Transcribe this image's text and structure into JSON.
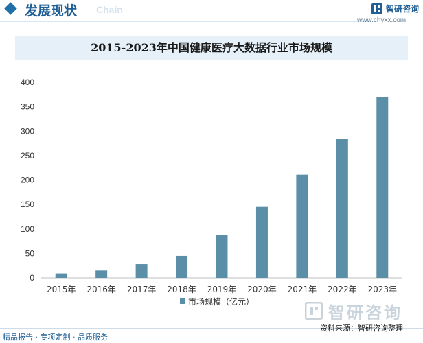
{
  "header": {
    "section_title": "发展现状",
    "section_subtitle": "Chain",
    "brand_name": "智研咨询",
    "brand_url": "www.chyxx.com"
  },
  "chart_data": {
    "type": "bar",
    "title": "2015-2023年中国健康医疗大数据行业市场规模",
    "categories": [
      "2015年",
      "2016年",
      "2017年",
      "2018年",
      "2019年",
      "2020年",
      "2021年",
      "2022年",
      "2023年"
    ],
    "series": [
      {
        "name": "市场规模（亿元）",
        "values": [
          9,
          15,
          28,
          45,
          88,
          145,
          211,
          284,
          370
        ]
      }
    ],
    "ylim": [
      0,
      400
    ],
    "yticks": [
      0,
      50,
      100,
      150,
      200,
      250,
      300,
      350,
      400
    ],
    "xlabel": "",
    "ylabel": "",
    "legend": "bottom-center",
    "grid": false,
    "bar_color": "#5b8fa8"
  },
  "footer": {
    "watermark": "智研咨询",
    "left_text": "精品报告 · 专项定制 · 品质服务",
    "source": "资料来源：智研咨询整理"
  }
}
